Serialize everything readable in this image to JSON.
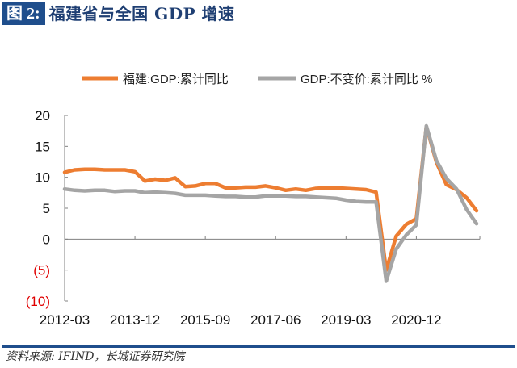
{
  "header": {
    "figure_label": "图 2:",
    "figure_title": "福建省与全国 GDP 增速"
  },
  "source": "资料来源: IFIND，长城证券研究院",
  "colors": {
    "brand": "#1f4e8c",
    "fujian": "#ed7d31",
    "national": "#a5a5a5",
    "negative_tick": "#e00000"
  },
  "chart_data": {
    "type": "line",
    "title": "福建省与全国 GDP 增速",
    "xlabel": "",
    "ylabel": "",
    "ylim": [
      -10,
      20
    ],
    "yticks": [
      20,
      15,
      10,
      5,
      0,
      -5,
      -10
    ],
    "ytick_labels": [
      "20",
      "15",
      "10",
      "5",
      "0",
      "(5)",
      "(10)"
    ],
    "xtick_labels": [
      "2012-03",
      "2013-12",
      "2015-09",
      "2017-06",
      "2019-03",
      "2020-12"
    ],
    "legend_position": "top",
    "grid": false,
    "x": [
      "2012-03",
      "2012-06",
      "2012-09",
      "2012-12",
      "2013-03",
      "2013-06",
      "2013-09",
      "2013-12",
      "2014-03",
      "2014-06",
      "2014-09",
      "2014-12",
      "2015-03",
      "2015-06",
      "2015-09",
      "2015-12",
      "2016-03",
      "2016-06",
      "2016-09",
      "2016-12",
      "2017-03",
      "2017-06",
      "2017-09",
      "2017-12",
      "2018-03",
      "2018-06",
      "2018-09",
      "2018-12",
      "2019-03",
      "2019-06",
      "2019-09",
      "2019-12",
      "2020-03",
      "2020-06",
      "2020-09",
      "2020-12",
      "2021-03",
      "2021-06",
      "2021-09",
      "2021-12",
      "2022-03",
      "2022-06"
    ],
    "series": [
      {
        "name": "福建:GDP:累计同比",
        "color": "#ed7d31",
        "values": [
          10.8,
          11.2,
          11.3,
          11.3,
          11.2,
          11.2,
          11.2,
          10.9,
          9.4,
          9.7,
          9.5,
          9.9,
          8.5,
          8.6,
          9.0,
          9.0,
          8.3,
          8.3,
          8.4,
          8.4,
          8.6,
          8.3,
          7.9,
          8.1,
          7.9,
          8.2,
          8.3,
          8.3,
          8.2,
          8.1,
          8.0,
          7.6,
          -5.0,
          0.5,
          2.4,
          3.3,
          18.2,
          12.4,
          8.8,
          8.0,
          6.7,
          4.6
        ]
      },
      {
        "name": "GDP:不变价:累计同比 %",
        "color": "#a5a5a5",
        "values": [
          8.1,
          7.9,
          7.8,
          7.9,
          7.9,
          7.7,
          7.8,
          7.8,
          7.5,
          7.6,
          7.5,
          7.4,
          7.1,
          7.1,
          7.1,
          7.0,
          6.9,
          6.9,
          6.8,
          6.8,
          7.0,
          7.0,
          7.0,
          6.9,
          6.9,
          6.8,
          6.7,
          6.6,
          6.3,
          6.1,
          6.0,
          6.0,
          -6.8,
          -1.6,
          0.7,
          2.3,
          18.3,
          12.7,
          9.8,
          8.1,
          4.8,
          2.5
        ]
      }
    ]
  }
}
